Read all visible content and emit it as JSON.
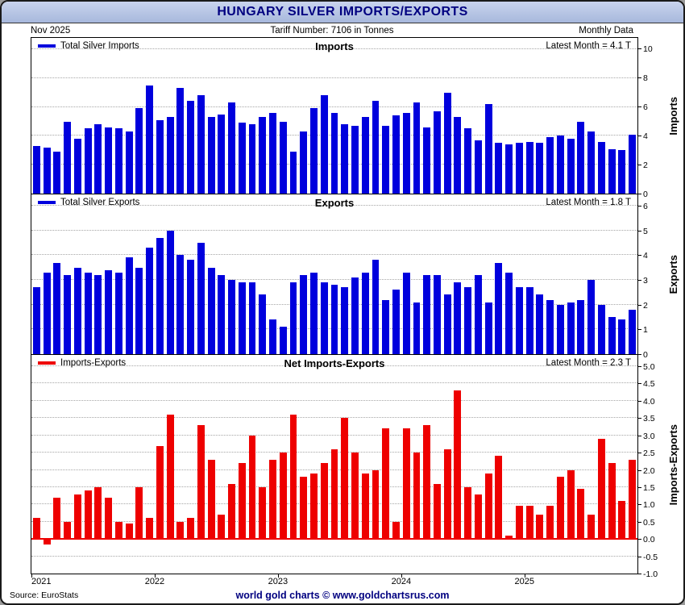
{
  "header": {
    "title": "HUNGARY SILVER IMPORTS/EXPORTS",
    "date": "Nov 2025",
    "tariff": "Tariff Number: 7106 in Tonnes",
    "frequency": "Monthly Data"
  },
  "footer": {
    "source": "Source: EuroStats",
    "brand": "world gold charts © www.goldchartsrus.com"
  },
  "colors": {
    "navy": "#000080",
    "titlebar_top": "#c9d4ee",
    "titlebar_bottom": "#a7b8dc",
    "imports": "#0000dd",
    "exports": "#0000dd",
    "net": "#ee0000",
    "grid": "#a6a6a6"
  },
  "months": [
    "2021-01",
    "2021-02",
    "2021-03",
    "2021-04",
    "2021-05",
    "2021-06",
    "2021-07",
    "2021-08",
    "2021-09",
    "2021-10",
    "2021-11",
    "2021-12",
    "2022-01",
    "2022-02",
    "2022-03",
    "2022-04",
    "2022-05",
    "2022-06",
    "2022-07",
    "2022-08",
    "2022-09",
    "2022-10",
    "2022-11",
    "2022-12",
    "2023-01",
    "2023-02",
    "2023-03",
    "2023-04",
    "2023-05",
    "2023-06",
    "2023-07",
    "2023-08",
    "2023-09",
    "2023-10",
    "2023-11",
    "2023-12",
    "2024-01",
    "2024-02",
    "2024-03",
    "2024-04",
    "2024-05",
    "2024-06",
    "2024-07",
    "2024-08",
    "2024-09",
    "2024-10",
    "2024-11",
    "2024-12",
    "2025-01",
    "2025-02",
    "2025-03",
    "2025-04",
    "2025-05",
    "2025-06",
    "2025-07",
    "2025-08",
    "2025-09",
    "2025-10",
    "2025-11"
  ],
  "x_axis": {
    "years": [
      {
        "label": "2021",
        "index": 0
      },
      {
        "label": "2022",
        "index": 12
      },
      {
        "label": "2023",
        "index": 24
      },
      {
        "label": "2024",
        "index": 36
      },
      {
        "label": "2025",
        "index": 48
      }
    ]
  },
  "chart_data": [
    {
      "type": "bar",
      "title": "Imports",
      "legend": "Total Silver Imports",
      "latest": "Latest Month = 4.1 T",
      "ylabel": "Imports",
      "bar_name": "imports-bar",
      "color": "#0000dd",
      "ylim": [
        0,
        10
      ],
      "yticks": [
        0,
        2,
        4,
        6,
        8,
        10
      ],
      "tick_decimals": 0,
      "zero_line": false,
      "values": [
        3.3,
        3.2,
        2.9,
        5.0,
        3.8,
        4.5,
        4.8,
        4.6,
        4.5,
        4.3,
        5.9,
        7.5,
        5.1,
        5.3,
        7.3,
        6.4,
        6.8,
        5.3,
        5.5,
        6.3,
        4.9,
        4.8,
        5.3,
        5.6,
        5.0,
        2.9,
        4.3,
        5.9,
        6.8,
        5.6,
        4.8,
        4.7,
        5.3,
        6.4,
        4.7,
        5.4,
        5.6,
        6.3,
        4.6,
        5.7,
        7.0,
        5.3,
        4.5,
        3.7,
        6.2,
        3.5,
        3.4,
        3.5,
        3.6,
        3.5,
        3.9,
        4.0,
        3.8,
        5.0,
        4.3,
        3.6,
        3.1,
        3.0,
        4.1
      ]
    },
    {
      "type": "bar",
      "title": "Exports",
      "legend": "Total Silver Exports",
      "latest": "Latest Month = 1.8 T",
      "ylabel": "Exports",
      "bar_name": "exports-bar",
      "color": "#0000dd",
      "ylim": [
        0,
        6
      ],
      "yticks": [
        0,
        1,
        2,
        3,
        4,
        5,
        6
      ],
      "tick_decimals": 0,
      "zero_line": false,
      "values": [
        2.7,
        3.3,
        3.7,
        3.2,
        3.5,
        3.3,
        3.2,
        3.4,
        3.3,
        3.9,
        3.5,
        4.3,
        4.7,
        5.0,
        4.0,
        3.8,
        4.5,
        3.5,
        3.2,
        3.0,
        2.9,
        2.9,
        2.4,
        1.4,
        1.1,
        2.9,
        3.2,
        3.3,
        2.9,
        2.8,
        2.7,
        3.1,
        3.3,
        3.8,
        2.2,
        2.6,
        3.3,
        2.1,
        3.2,
        3.2,
        2.4,
        2.9,
        2.7,
        3.2,
        2.1,
        3.7,
        3.3,
        2.7,
        2.7,
        2.4,
        2.2,
        2.0,
        2.1,
        2.2,
        3.0,
        2.0,
        1.5,
        1.4,
        1.8
      ]
    },
    {
      "type": "bar",
      "title": "Net Imports-Exports",
      "legend": "Imports-Exports",
      "latest": "Latest Month = 2.3 T",
      "ylabel": "Imports-Exports",
      "bar_name": "net-bar",
      "color": "#ee0000",
      "ylim": [
        -1.0,
        5.0
      ],
      "yticks": [
        -1.0,
        -0.5,
        0.0,
        0.5,
        1.0,
        1.5,
        2.0,
        2.5,
        3.0,
        3.5,
        4.0,
        4.5,
        5.0
      ],
      "tick_decimals": 1,
      "zero_line": true,
      "values": [
        0.6,
        -0.15,
        1.2,
        0.5,
        1.3,
        1.4,
        1.5,
        1.2,
        0.5,
        0.45,
        1.5,
        0.6,
        2.7,
        3.6,
        0.5,
        0.6,
        3.3,
        2.3,
        0.7,
        1.6,
        2.2,
        3.0,
        1.5,
        2.3,
        2.5,
        3.6,
        1.8,
        1.9,
        2.2,
        2.6,
        3.5,
        2.5,
        1.9,
        2.0,
        3.2,
        0.5,
        3.2,
        2.5,
        3.3,
        1.6,
        2.6,
        4.3,
        1.5,
        1.3,
        1.9,
        2.4,
        0.1,
        0.95,
        0.95,
        0.7,
        0.95,
        1.8,
        2.0,
        1.45,
        0.7,
        2.9,
        2.2,
        1.1,
        2.3
      ]
    }
  ]
}
